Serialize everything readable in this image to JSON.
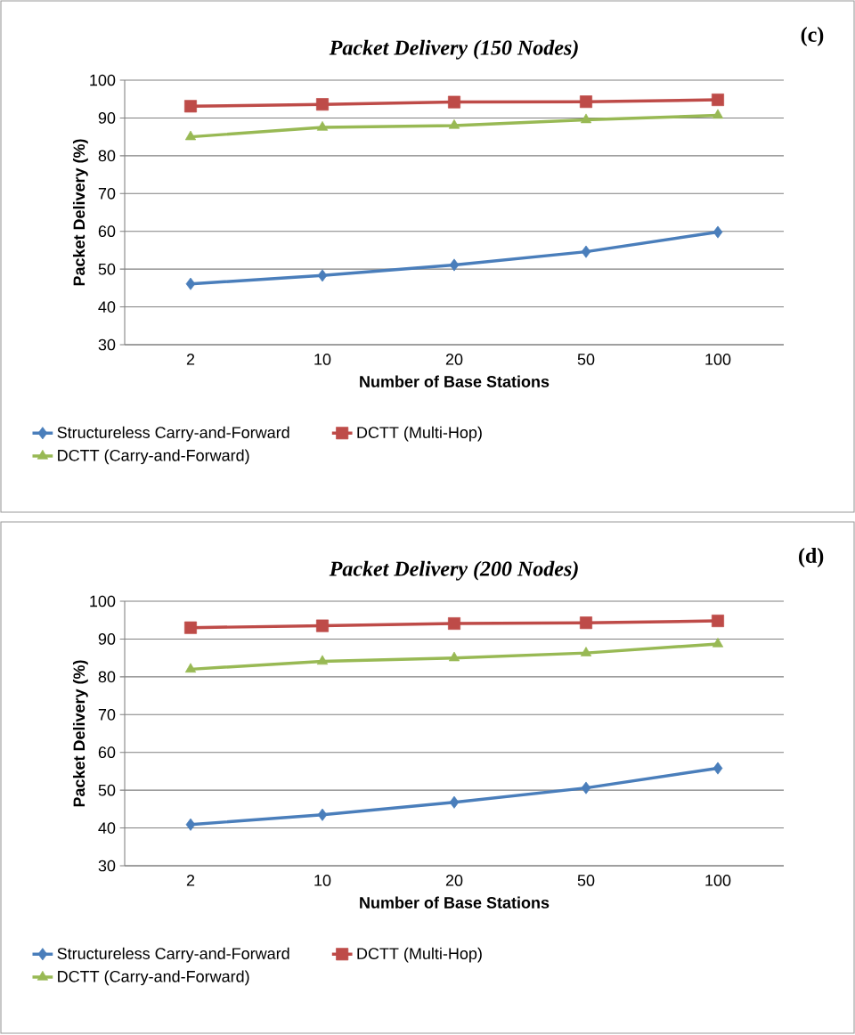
{
  "chart_data": [
    {
      "type": "line",
      "title": "Packet Delivery (150 Nodes)",
      "annotations": [
        "(c)"
      ],
      "categories": [
        "2",
        "10",
        "20",
        "50",
        "100"
      ],
      "xlabel": "Number of Base Stations",
      "ylabel": "Packet Delivery (%)",
      "ylim": [
        30,
        100
      ],
      "yticks": [
        30,
        40,
        50,
        60,
        70,
        80,
        90,
        100
      ],
      "grid": "y",
      "legend": "bottom",
      "series": [
        {
          "name": "Structureless Carry-and-Forward",
          "color": "#4a7ebb",
          "marker": "diamond",
          "values": [
            46.1,
            48.3,
            51.1,
            54.6,
            59.8
          ]
        },
        {
          "name": "DCTT (Multi-Hop)",
          "color": "#be4b48",
          "marker": "square",
          "values": [
            93.1,
            93.6,
            94.2,
            94.3,
            94.8
          ]
        },
        {
          "name": "DCTT (Carry-and-Forward)",
          "color": "#98b954",
          "marker": "triangle",
          "values": [
            85.0,
            87.5,
            88.0,
            89.5,
            90.7
          ]
        }
      ]
    },
    {
      "type": "line",
      "title": "Packet Delivery (200 Nodes)",
      "annotations": [
        "(d)"
      ],
      "categories": [
        "2",
        "10",
        "20",
        "50",
        "100"
      ],
      "xlabel": "Number of Base Stations",
      "ylabel": "Packet Delivery (%)",
      "ylim": [
        30,
        100
      ],
      "yticks": [
        30,
        40,
        50,
        60,
        70,
        80,
        90,
        100
      ],
      "grid": "y",
      "legend": "bottom",
      "series": [
        {
          "name": "Structureless Carry-and-Forward",
          "color": "#4a7ebb",
          "marker": "diamond",
          "values": [
            40.9,
            43.5,
            46.8,
            50.6,
            55.8
          ]
        },
        {
          "name": "DCTT (Multi-Hop)",
          "color": "#be4b48",
          "marker": "square",
          "values": [
            93.0,
            93.5,
            94.1,
            94.3,
            94.8
          ]
        },
        {
          "name": "DCTT (Carry-and-Forward)",
          "color": "#98b954",
          "marker": "triangle",
          "values": [
            82.0,
            84.1,
            85.0,
            86.3,
            88.7
          ]
        }
      ]
    }
  ]
}
